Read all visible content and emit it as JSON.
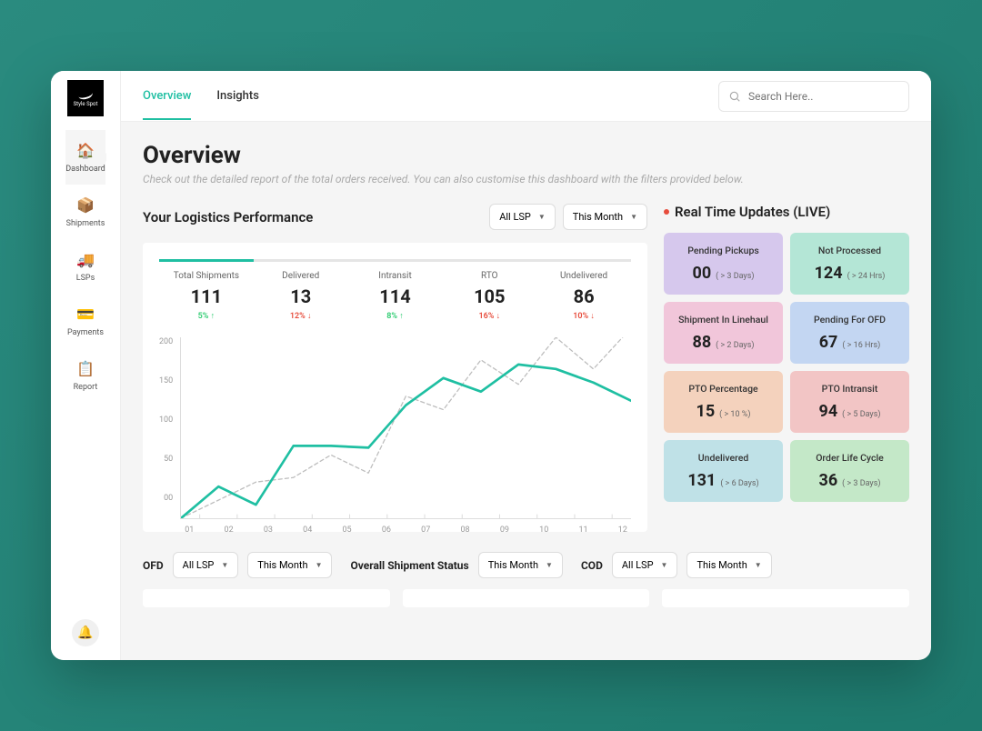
{
  "brand": {
    "name": "Style Spot"
  },
  "sidebar": {
    "items": [
      {
        "label": "Dashboard",
        "icon": "🏠",
        "active": true
      },
      {
        "label": "Shipments",
        "icon": "📦",
        "active": false
      },
      {
        "label": "LSPs",
        "icon": "🚚",
        "active": false
      },
      {
        "label": "Payments",
        "icon": "💳",
        "active": false
      },
      {
        "label": "Report",
        "icon": "📋",
        "active": false
      }
    ],
    "notification_icon": "🔔"
  },
  "header": {
    "tabs": [
      {
        "label": "Overview",
        "active": true
      },
      {
        "label": "Insights",
        "active": false
      }
    ],
    "search_placeholder": "Search Here.."
  },
  "page": {
    "title": "Overview",
    "subtitle": "Check out the detailed report of the total orders received. You can also customise this dashboard with the filters provided below."
  },
  "performance": {
    "title": "Your Logistics Performance",
    "filters": {
      "lsp": "All LSP",
      "range": "This Month"
    },
    "metrics": [
      {
        "label": "Total Shipments",
        "value": "111",
        "delta": "5%",
        "direction": "up",
        "active": true
      },
      {
        "label": "Delivered",
        "value": "13",
        "delta": "12%",
        "direction": "down",
        "active": false
      },
      {
        "label": "Intransit",
        "value": "114",
        "delta": "8%",
        "direction": "up",
        "active": false
      },
      {
        "label": "RTO",
        "value": "105",
        "delta": "16%",
        "direction": "down",
        "active": false
      },
      {
        "label": "Undelivered",
        "value": "86",
        "delta": "10%",
        "direction": "down",
        "active": false
      }
    ],
    "chart": {
      "type": "line",
      "ylim": [
        0,
        200
      ],
      "yticks": [
        "200",
        "150",
        "100",
        "50",
        "00"
      ],
      "xticks": [
        "01",
        "02",
        "03",
        "04",
        "05",
        "06",
        "07",
        "08",
        "09",
        "10",
        "11",
        "12"
      ],
      "series": [
        {
          "name": "current",
          "color": "#1fbfa2",
          "stroke_width": 2.5,
          "dash": "none",
          "values": [
            0,
            35,
            15,
            80,
            80,
            78,
            125,
            155,
            140,
            170,
            165,
            150,
            130
          ]
        },
        {
          "name": "previous",
          "color": "#bdbdbd",
          "stroke_width": 1.2,
          "dash": "4 3",
          "values": [
            0,
            20,
            40,
            45,
            70,
            50,
            135,
            120,
            175,
            148,
            200,
            165,
            210
          ]
        }
      ],
      "background": "#ffffff",
      "axis_color": "#dddddd",
      "tick_color": "#999999",
      "tick_fontsize": 9
    }
  },
  "live": {
    "title": "Real Time Updates (LIVE)",
    "cards": [
      {
        "title": "Pending Pickups",
        "value": "00",
        "note": "( > 3 Days)",
        "bg": "#d6c8ed"
      },
      {
        "title": "Not Processed",
        "value": "124",
        "note": "( > 24 Hrs)",
        "bg": "#b4e6d6"
      },
      {
        "title": "Shipment In Linehaul",
        "value": "88",
        "note": "( > 2 Days)",
        "bg": "#f1c6da"
      },
      {
        "title": "Pending For OFD",
        "value": "67",
        "note": "( > 16 Hrs)",
        "bg": "#c3d6f2"
      },
      {
        "title": "PTO Percentage",
        "value": "15",
        "note": "( > 10 %)",
        "bg": "#f4d2bd"
      },
      {
        "title": "PTO Intransit",
        "value": "94",
        "note": "( > 5 Days)",
        "bg": "#f2c5c5"
      },
      {
        "title": "Undelivered",
        "value": "131",
        "note": "( > 6 Days)",
        "bg": "#bfe1e7"
      },
      {
        "title": "Order Life Cycle",
        "value": "36",
        "note": "( > 3 Days)",
        "bg": "#c4e8c8"
      }
    ]
  },
  "bottom_filters": {
    "ofd": {
      "label": "OFD",
      "lsp": "All LSP",
      "range": "This Month"
    },
    "overall": {
      "label": "Overall Shipment Status",
      "range": "This Month"
    },
    "cod": {
      "label": "COD",
      "lsp": "All LSP",
      "range": "This Month"
    }
  }
}
